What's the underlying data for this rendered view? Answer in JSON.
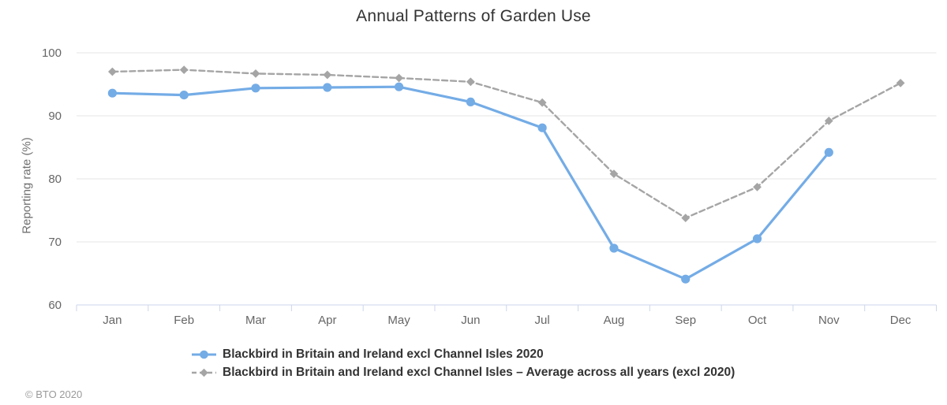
{
  "chart_data": {
    "type": "line",
    "title": "Annual Patterns of Garden Use",
    "xlabel": "",
    "ylabel": "Reporting rate (%)",
    "categories": [
      "Jan",
      "Feb",
      "Mar",
      "Apr",
      "May",
      "Jun",
      "Jul",
      "Aug",
      "Sep",
      "Oct",
      "Nov",
      "Dec"
    ],
    "ylim": [
      60,
      100
    ],
    "yticks": [
      60,
      70,
      80,
      90,
      100
    ],
    "grid": "horizontal",
    "legend_position": "bottom-left",
    "series": [
      {
        "name": "Blackbird in Britain and Ireland excl Channel Isles 2020",
        "color": "#74ace6",
        "marker": "circle",
        "line_style": "solid",
        "values": [
          93.6,
          93.3,
          94.4,
          94.5,
          94.6,
          92.2,
          88.1,
          69.0,
          64.1,
          70.5,
          84.2,
          null
        ]
      },
      {
        "name": "Blackbird in Britain and Ireland excl Channel Isles – Average across all years (excl 2020)",
        "color": "#a5a5a5",
        "marker": "diamond",
        "line_style": "dashed",
        "values": [
          97.0,
          97.3,
          96.7,
          96.5,
          96.0,
          95.4,
          92.1,
          80.8,
          73.8,
          78.7,
          89.2,
          95.2
        ]
      }
    ]
  },
  "footer": {
    "copyright": "© BTO 2020"
  },
  "colors": {
    "background": "#ffffff",
    "gridline": "#e6e6e6",
    "axis_line": "#ccd6eb",
    "tick": "#ccd6eb",
    "title_text": "#333333",
    "axis_label_text": "#666666",
    "legend_text": "#333333",
    "copyright_text": "#9a9a9a"
  }
}
